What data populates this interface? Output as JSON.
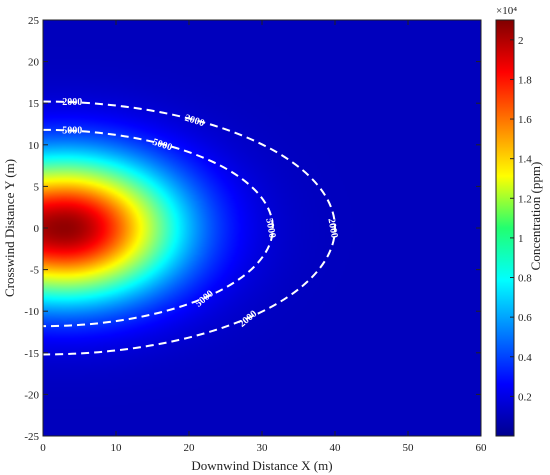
{
  "chart_data": {
    "type": "heatmap",
    "title": "",
    "xlabel": "Downwind Distance X (m)",
    "ylabel": "Crosswind Distance Y (m)",
    "xlim": [
      0,
      60
    ],
    "ylim": [
      -25,
      25
    ],
    "x_ticks": [
      "0",
      "10",
      "20",
      "30",
      "40",
      "50",
      "60"
    ],
    "y_ticks": [
      "25",
      "20",
      "15",
      "10",
      "5",
      "0",
      "-5",
      "-10",
      "-15",
      "-20",
      "-25"
    ],
    "colormap": "jet",
    "colorbar": {
      "label": "Concentration (ppm)",
      "exponent_label": "×10⁴",
      "min": 0,
      "max": 2.1,
      "ticks": [
        "2",
        "1.8",
        "1.6",
        "1.4",
        "1.2",
        "1",
        "0.8",
        "0.6",
        "0.4",
        "0.2"
      ]
    },
    "field": {
      "peak_value": 2.06,
      "peak_location": [
        3,
        0
      ],
      "scale_unit": "×10⁴ ppm"
    },
    "contours": [
      {
        "level": "2000",
        "color": "#ffffff",
        "style": "dashed",
        "y_half_width_at_x0": 15.2,
        "x_extent_at_y0": 40,
        "labels": [
          "2000",
          "2000",
          "2000",
          "2000"
        ]
      },
      {
        "level": "5000",
        "color": "#ffffff",
        "style": "dashed",
        "y_half_width_at_x0": 11.8,
        "x_extent_at_y0": 31.5,
        "labels": [
          "5000",
          "5000",
          "5000",
          "5000"
        ]
      }
    ]
  }
}
